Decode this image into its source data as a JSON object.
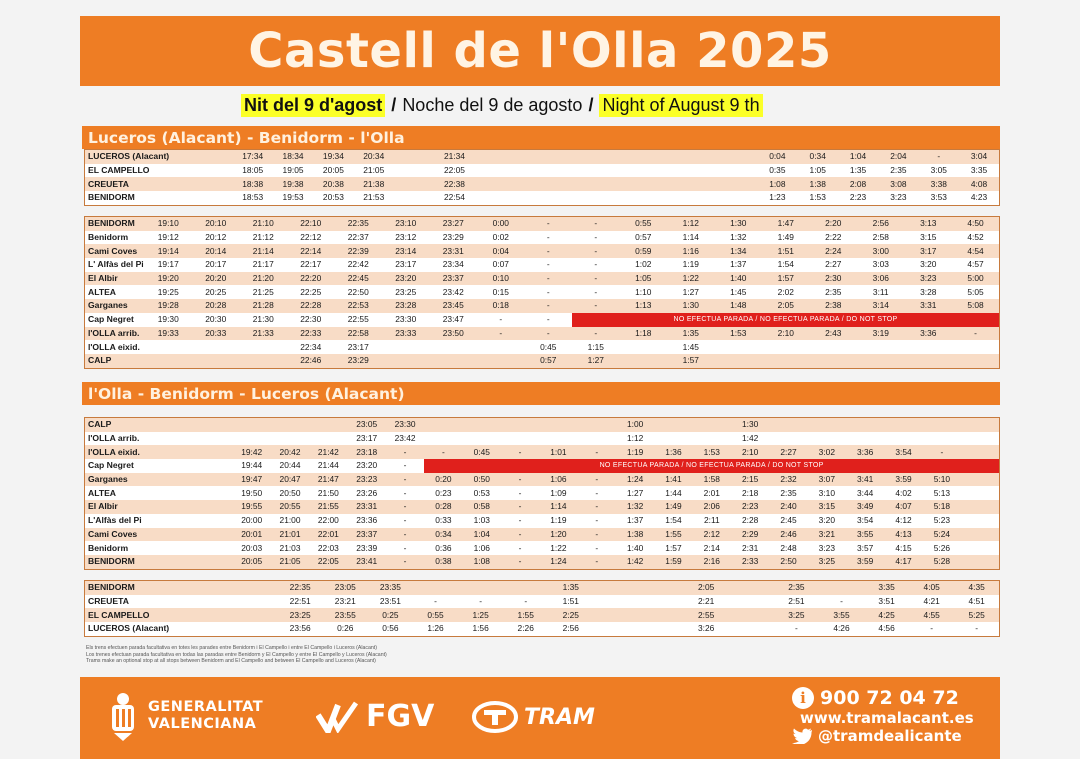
{
  "title": "Castell de l'Olla 2025",
  "subtitle": {
    "valencian": "Nit del 9 d'agost",
    "sep1": "/",
    "spanish": "Noche del 9 de agosto",
    "sep2": "/",
    "english": "Night of August 9 th"
  },
  "section1": {
    "title": "Luceros (Alacant) - Benidorm - l'Olla",
    "table1": [
      [
        "LUCEROS (Alacant)",
        "17:34",
        "18:34",
        "19:34",
        "20:34",
        "",
        "21:34",
        "",
        "",
        "",
        "",
        "",
        "",
        "",
        "0:04",
        "0:34",
        "1:04",
        "2:04",
        "-",
        "3:04"
      ],
      [
        "EL CAMPELLO",
        "18:05",
        "19:05",
        "20:05",
        "21:05",
        "",
        "22:05",
        "",
        "",
        "",
        "",
        "",
        "",
        "",
        "0:35",
        "1:05",
        "1:35",
        "2:35",
        "3:05",
        "3:35"
      ],
      [
        "CREUETA",
        "18:38",
        "19:38",
        "20:38",
        "21:38",
        "",
        "22:38",
        "",
        "",
        "",
        "",
        "",
        "",
        "",
        "1:08",
        "1:38",
        "2:08",
        "3:08",
        "3:38",
        "4:08"
      ],
      [
        "BENIDORM",
        "18:53",
        "19:53",
        "20:53",
        "21:53",
        "",
        "22:54",
        "",
        "",
        "",
        "",
        "",
        "",
        "",
        "1:23",
        "1:53",
        "2:23",
        "3:23",
        "3:53",
        "4:23"
      ]
    ],
    "table2": [
      [
        "BENIDORM",
        "19:10",
        "20:10",
        "21:10",
        "22:10",
        "22:35",
        "23:10",
        "23:27",
        "0:00",
        "-",
        "-",
        "0:55",
        "1:12",
        "1:30",
        "1:47",
        "2:20",
        "2:56",
        "3:13",
        "4:50"
      ],
      [
        "Benidorm",
        "19:12",
        "20:12",
        "21:12",
        "22:12",
        "22:37",
        "23:12",
        "23:29",
        "0:02",
        "-",
        "-",
        "0:57",
        "1:14",
        "1:32",
        "1:49",
        "2:22",
        "2:58",
        "3:15",
        "4:52"
      ],
      [
        "Cami Coves",
        "19:14",
        "20:14",
        "21:14",
        "22:14",
        "22:39",
        "23:14",
        "23:31",
        "0:04",
        "-",
        "-",
        "0:59",
        "1:16",
        "1:34",
        "1:51",
        "2:24",
        "3:00",
        "3:17",
        "4:54"
      ],
      [
        "L' Alfàs del Pi",
        "19:17",
        "20:17",
        "21:17",
        "22:17",
        "22:42",
        "23:17",
        "23:34",
        "0:07",
        "-",
        "-",
        "1:02",
        "1:19",
        "1:37",
        "1:54",
        "2:27",
        "3:03",
        "3:20",
        "4:57"
      ],
      [
        "El Albir",
        "19:20",
        "20:20",
        "21:20",
        "22:20",
        "22:45",
        "23:20",
        "23:37",
        "0:10",
        "-",
        "-",
        "1:05",
        "1:22",
        "1:40",
        "1:57",
        "2:30",
        "3:06",
        "3:23",
        "5:00"
      ],
      [
        "ALTEA",
        "19:25",
        "20:25",
        "21:25",
        "22:25",
        "22:50",
        "23:25",
        "23:42",
        "0:15",
        "-",
        "-",
        "1:10",
        "1:27",
        "1:45",
        "2:02",
        "2:35",
        "3:11",
        "3:28",
        "5:05"
      ],
      [
        "Garganes",
        "19:28",
        "20:28",
        "21:28",
        "22:28",
        "22:53",
        "23:28",
        "23:45",
        "0:18",
        "-",
        "-",
        "1:13",
        "1:30",
        "1:48",
        "2:05",
        "2:38",
        "3:14",
        "3:31",
        "5:08"
      ],
      [
        "Cap Negret",
        "19:30",
        "20:30",
        "21:30",
        "22:30",
        "22:55",
        "23:30",
        "23:47",
        "-",
        "-",
        "-"
      ],
      [
        "l'OLLA arrib.",
        "19:33",
        "20:33",
        "21:33",
        "22:33",
        "22:58",
        "23:33",
        "23:50",
        "-",
        "-",
        "-",
        "1:18",
        "1:35",
        "1:53",
        "2:10",
        "2:43",
        "3:19",
        "3:36",
        "-"
      ],
      [
        "l'OLLA eixid.",
        "",
        "",
        "",
        "22:34",
        "23:17",
        "",
        "",
        "",
        "0:45",
        "1:15",
        "",
        "1:45",
        "",
        "",
        "",
        "",
        "",
        ""
      ],
      [
        "CALP",
        "",
        "",
        "",
        "22:46",
        "23:29",
        "",
        "",
        "",
        "0:57",
        "1:27",
        "",
        "1:57",
        "",
        "",
        "",
        "",
        "",
        ""
      ]
    ],
    "no_stop_note": "NO EFECTUA PARADA / NO EFECTUA PARADA / DO NOT STOP"
  },
  "section2": {
    "title": "l'Olla - Benidorm - Luceros (Alacant)",
    "table3": [
      [
        "CALP",
        "",
        "",
        "",
        "23:05",
        "23:30",
        "",
        "",
        "",
        "",
        "",
        "1:00",
        "",
        "",
        "1:30",
        "",
        "",
        "",
        "",
        "",
        ""
      ],
      [
        "l'OLLA arrib.",
        "",
        "",
        "",
        "23:17",
        "23:42",
        "",
        "",
        "",
        "",
        "",
        "1:12",
        "",
        "",
        "1:42",
        "",
        "",
        "",
        "",
        "",
        ""
      ],
      [
        "l'OLLA eixid.",
        "19:42",
        "20:42",
        "21:42",
        "23:18",
        "-",
        "-",
        "0:45",
        "-",
        "1:01",
        "-",
        "1:19",
        "1:36",
        "1:53",
        "2:10",
        "2:27",
        "3:02",
        "3:36",
        "3:54",
        "-"
      ],
      [
        "Cap Negret",
        "19:44",
        "20:44",
        "21:44",
        "23:20",
        "-",
        "-"
      ],
      [
        "Garganes",
        "19:47",
        "20:47",
        "21:47",
        "23:23",
        "-",
        "0:20",
        "0:50",
        "-",
        "1:06",
        "-",
        "1:24",
        "1:41",
        "1:58",
        "2:15",
        "2:32",
        "3:07",
        "3:41",
        "3:59",
        "5:10"
      ],
      [
        "ALTEA",
        "19:50",
        "20:50",
        "21:50",
        "23:26",
        "-",
        "0:23",
        "0:53",
        "-",
        "1:09",
        "-",
        "1:27",
        "1:44",
        "2:01",
        "2:18",
        "2:35",
        "3:10",
        "3:44",
        "4:02",
        "5:13"
      ],
      [
        "El Albir",
        "19:55",
        "20:55",
        "21:55",
        "23:31",
        "-",
        "0:28",
        "0:58",
        "-",
        "1:14",
        "-",
        "1:32",
        "1:49",
        "2:06",
        "2:23",
        "2:40",
        "3:15",
        "3:49",
        "4:07",
        "5:18"
      ],
      [
        "L'Alfàs del Pi",
        "20:00",
        "21:00",
        "22:00",
        "23:36",
        "-",
        "0:33",
        "1:03",
        "-",
        "1:19",
        "-",
        "1:37",
        "1:54",
        "2:11",
        "2:28",
        "2:45",
        "3:20",
        "3:54",
        "4:12",
        "5:23"
      ],
      [
        "Cami Coves",
        "20:01",
        "21:01",
        "22:01",
        "23:37",
        "-",
        "0:34",
        "1:04",
        "-",
        "1:20",
        "-",
        "1:38",
        "1:55",
        "2:12",
        "2:29",
        "2:46",
        "3:21",
        "3:55",
        "4:13",
        "5:24"
      ],
      [
        "Benidorm",
        "20:03",
        "21:03",
        "22:03",
        "23:39",
        "-",
        "0:36",
        "1:06",
        "-",
        "1:22",
        "-",
        "1:40",
        "1:57",
        "2:14",
        "2:31",
        "2:48",
        "3:23",
        "3:57",
        "4:15",
        "5:26"
      ],
      [
        "BENIDORM",
        "20:05",
        "21:05",
        "22:05",
        "23:41",
        "-",
        "0:38",
        "1:08",
        "-",
        "1:24",
        "-",
        "1:42",
        "1:59",
        "2:16",
        "2:33",
        "2:50",
        "3:25",
        "3:59",
        "4:17",
        "5:28"
      ]
    ],
    "table4": [
      [
        "BENIDORM",
        "",
        "22:35",
        "23:05",
        "23:35",
        "",
        "",
        "",
        "1:35",
        "",
        "",
        "2:05",
        "",
        "2:35",
        "",
        "3:35",
        "4:05",
        "4:35"
      ],
      [
        "CREUETA",
        "",
        "22:51",
        "23:21",
        "23:51",
        "-",
        "-",
        "-",
        "1:51",
        "",
        "",
        "2:21",
        "",
        "2:51",
        "-",
        "3:51",
        "4:21",
        "4:51"
      ],
      [
        "EL CAMPELLO",
        "",
        "23:25",
        "23:55",
        "0:25",
        "0:55",
        "1:25",
        "1:55",
        "2:25",
        "",
        "",
        "2:55",
        "",
        "3:25",
        "3:55",
        "4:25",
        "4:55",
        "5:25"
      ],
      [
        "LUCEROS (Alacant)",
        "",
        "23:56",
        "0:26",
        "0:56",
        "1:26",
        "1:56",
        "2:26",
        "2:56",
        "",
        "",
        "3:26",
        "",
        "-",
        "4:26",
        "4:56",
        "-",
        "-"
      ]
    ]
  },
  "notes": [
    "Els trens efectuen parada facultativa en totes les parades entre Benidorm i El Campello i entre El Campello i Luceros (Alacant)",
    "Los trenes efectuan parada facultativa en todas las paradas entre Benidorm y El Campello y entre El Campello y Luceros (Alacant)",
    "Trams make an optional stop at all stops between Benidorm and El Campello and between El Campello and Luceros (Alacant)"
  ],
  "footer": {
    "gv_line1": "GENERALITAT",
    "gv_line2": "VALENCIANA",
    "fgv": "FGV",
    "tram": "TRAM",
    "phone": "900 72 04 72",
    "web": "www.tramalacant.es",
    "twitter": "@tramdealicante"
  },
  "colors": {
    "brand_orange": "#ee7d24",
    "row_alt": "#f8dcc6",
    "highlight": "#fbff28",
    "no_stop_red": "#e0201c"
  }
}
